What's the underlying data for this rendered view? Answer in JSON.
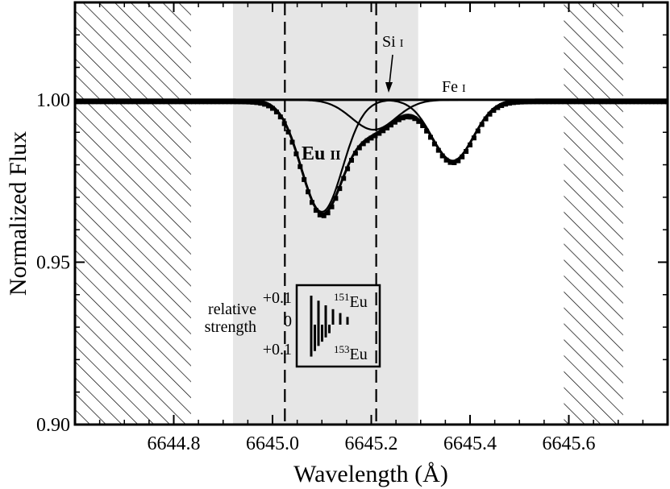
{
  "chart_data": {
    "type": "line",
    "xlabel": "Wavelength (Å)",
    "ylabel": "Normalized Flux",
    "xlim": [
      6644.6,
      6645.8
    ],
    "ylim": [
      0.9,
      1.03
    ],
    "x_ticks": [
      {
        "value": 6644.8,
        "label": "6644.8"
      },
      {
        "value": 6645.0,
        "label": "6645.0"
      },
      {
        "value": 6645.2,
        "label": "6645.2"
      },
      {
        "value": 6645.4,
        "label": "6645.4"
      },
      {
        "value": 6645.6,
        "label": "6645.6"
      }
    ],
    "y_ticks": [
      {
        "value": 0.9,
        "label": "0.90"
      },
      {
        "value": 0.95,
        "label": "0.95"
      },
      {
        "value": 1.0,
        "label": "1.00"
      }
    ],
    "grid": false,
    "reference_line_y": 1.0,
    "hatched_regions": [
      [
        6644.6,
        6644.835
      ],
      [
        6645.59,
        6645.71
      ]
    ],
    "shaded_region": [
      6644.92,
      6645.295
    ],
    "dashed_lines_x": [
      6645.025,
      6645.21
    ],
    "line_components": [
      {
        "center": 6645.1,
        "depth": 0.0345,
        "sigma": 0.042
      },
      {
        "center": 6645.365,
        "depth": 0.0188,
        "sigma": 0.042
      },
      {
        "center": 6645.205,
        "depth": 0.0092,
        "sigma": 0.045
      }
    ],
    "observed_points_step": 0.008,
    "annotations": {
      "eu": "Eu",
      "eu_ion": "II",
      "si": "Si",
      "si_ion": "I",
      "fe": "Fe",
      "fe_ion": "I"
    },
    "inset": {
      "label_line1": "relative",
      "label_line2": "strength",
      "ticks": [
        "+0.1",
        "0",
        "+0.1"
      ],
      "eu151_mass": "151",
      "eu151_symbol": "Eu",
      "eu153_mass": "153",
      "eu153_symbol": "Eu",
      "eu151_strengths": [
        0.075,
        0.062,
        0.05,
        0.04,
        0.03,
        0.02
      ],
      "eu153_strengths": [
        0.075,
        0.062,
        0.05,
        0.04,
        0.03,
        0.02
      ]
    }
  }
}
